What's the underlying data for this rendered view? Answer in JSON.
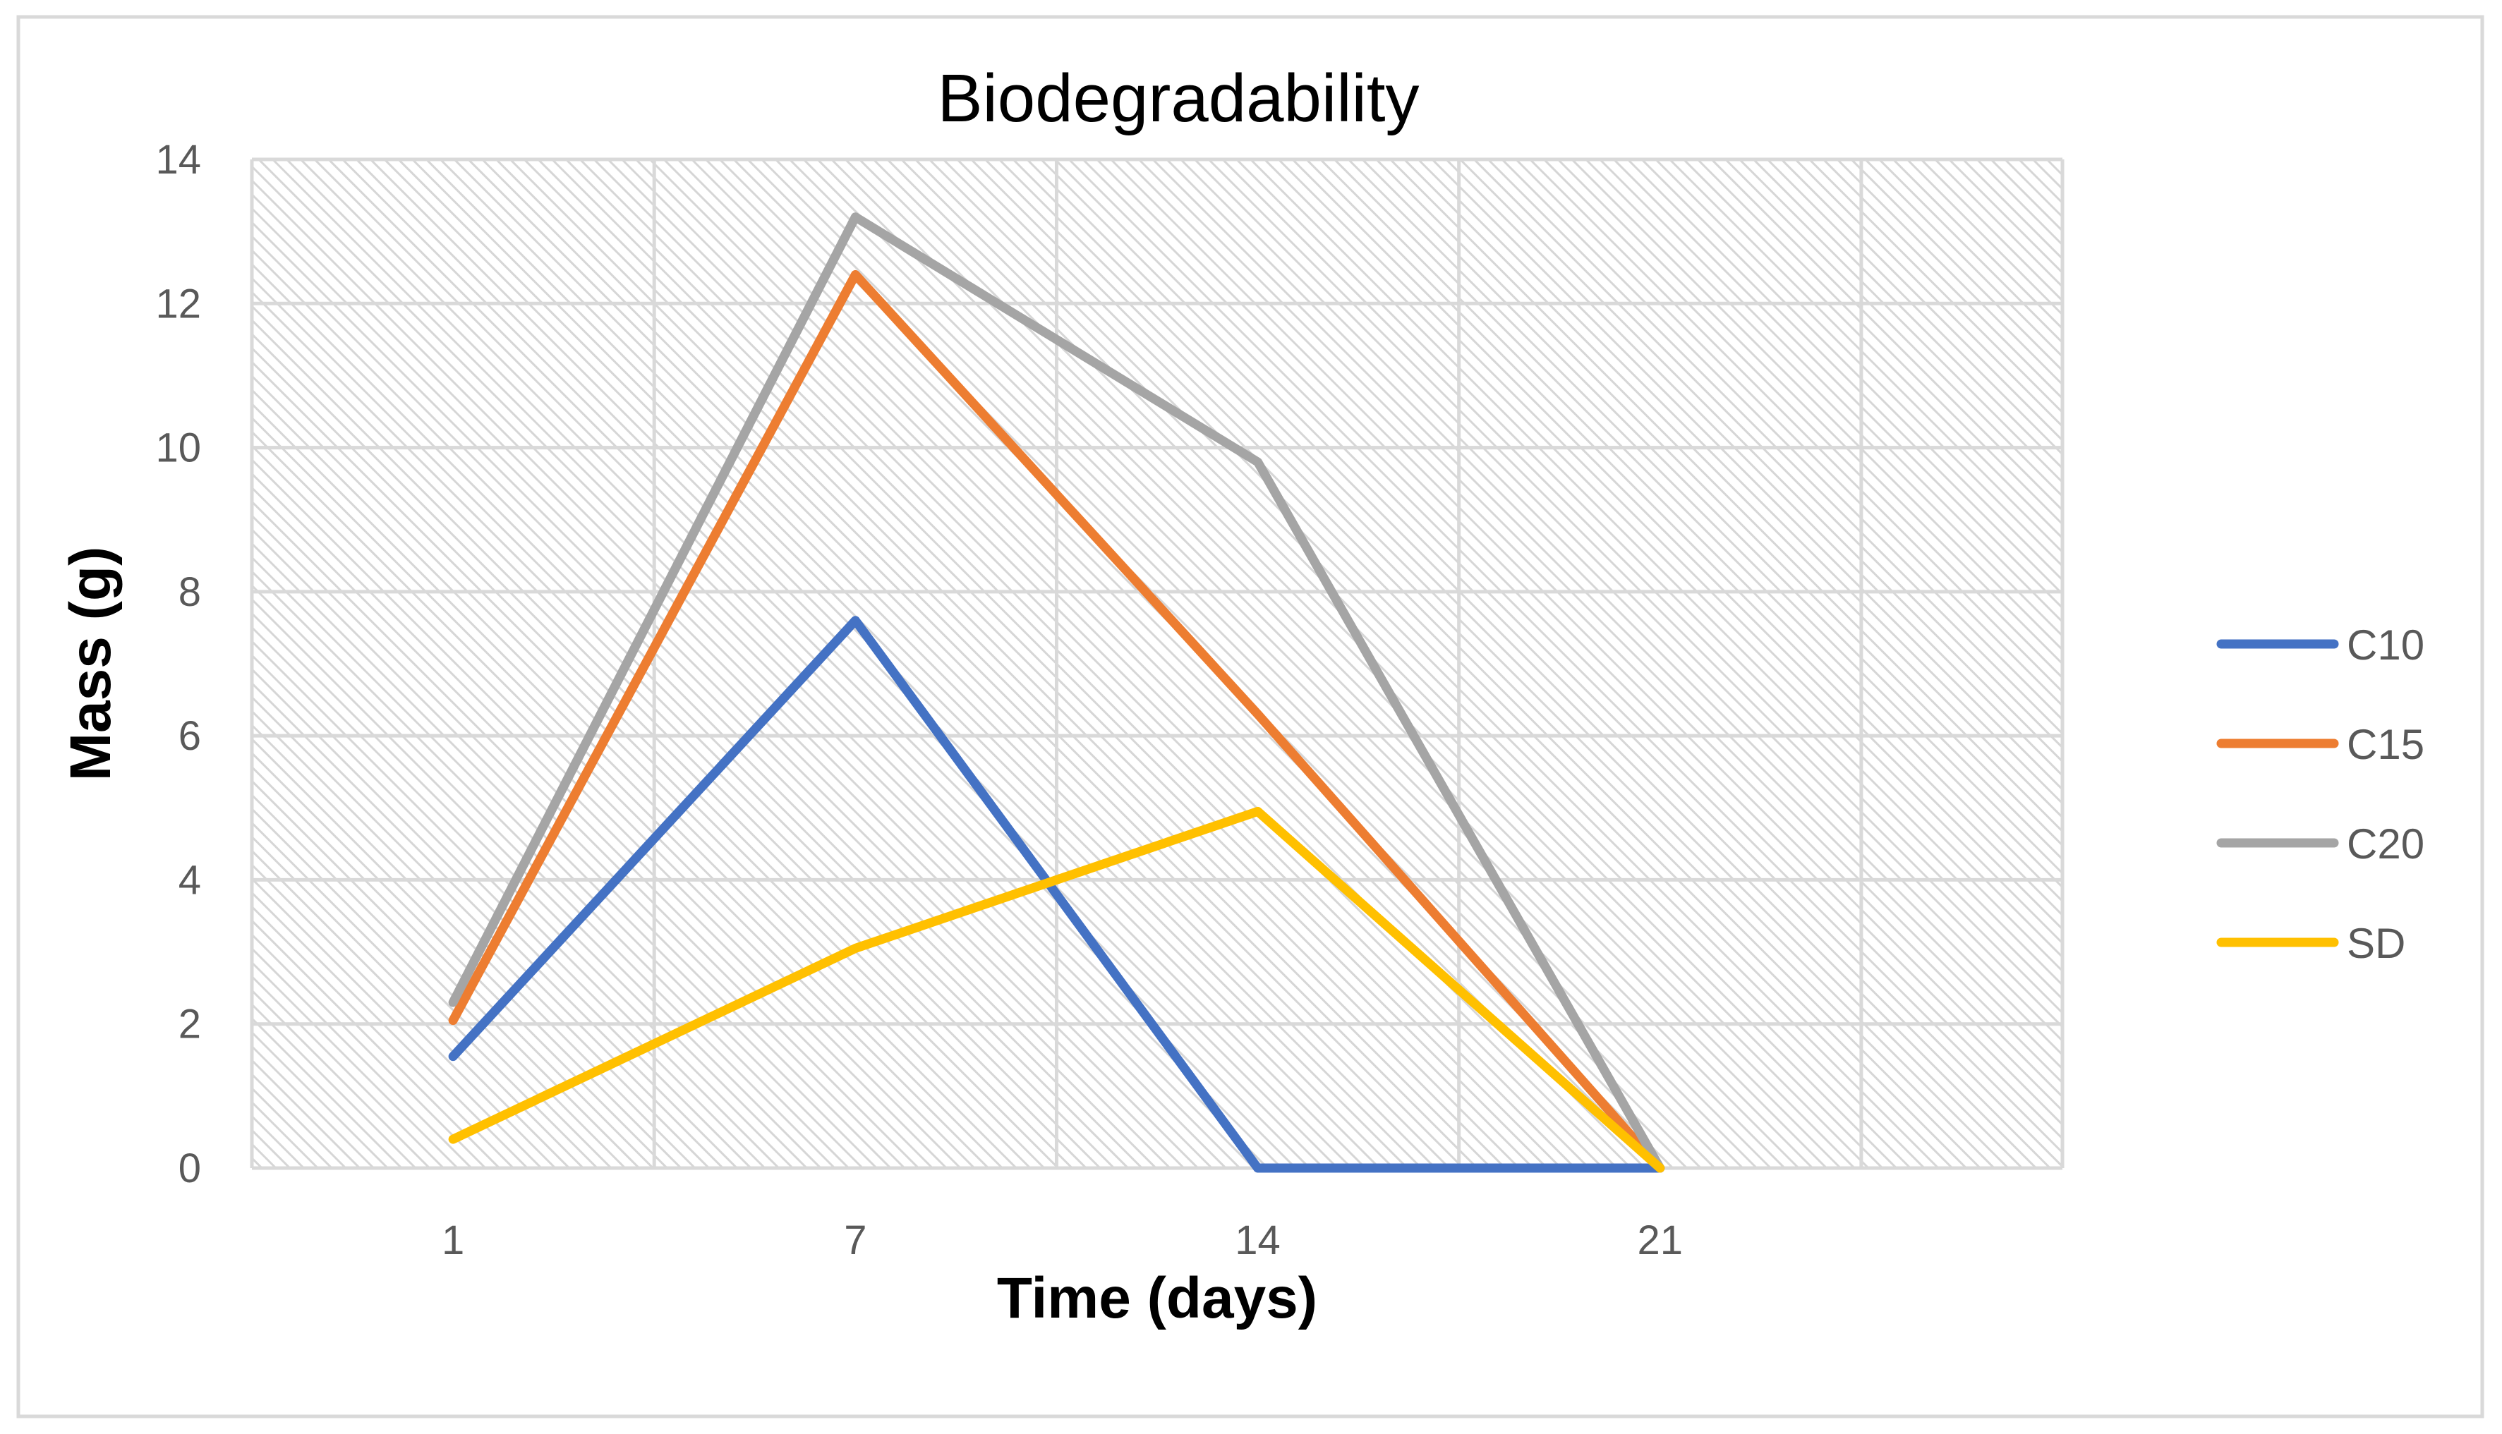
{
  "chart_data": {
    "type": "line",
    "title": "Biodegradability",
    "xlabel": "Time (days)",
    "ylabel": "Mass (g)",
    "categories": [
      "1",
      "7",
      "14",
      "21"
    ],
    "ylim": [
      0,
      14
    ],
    "yticks": [
      "0",
      "2",
      "4",
      "6",
      "8",
      "10",
      "12",
      "14"
    ],
    "grid": true,
    "legend_position": "right",
    "series": [
      {
        "name": "C10",
        "color": "#4472C4",
        "values": [
          1.55,
          7.6,
          0,
          0
        ]
      },
      {
        "name": "C15",
        "color": "#ED7D31",
        "values": [
          2.05,
          12.4,
          6.3,
          0
        ]
      },
      {
        "name": "C20",
        "color": "#A5A5A5",
        "values": [
          2.3,
          13.2,
          9.8,
          0
        ]
      },
      {
        "name": "SD",
        "color": "#FFC000",
        "values": [
          0.4,
          3.05,
          4.95,
          0
        ]
      }
    ]
  }
}
